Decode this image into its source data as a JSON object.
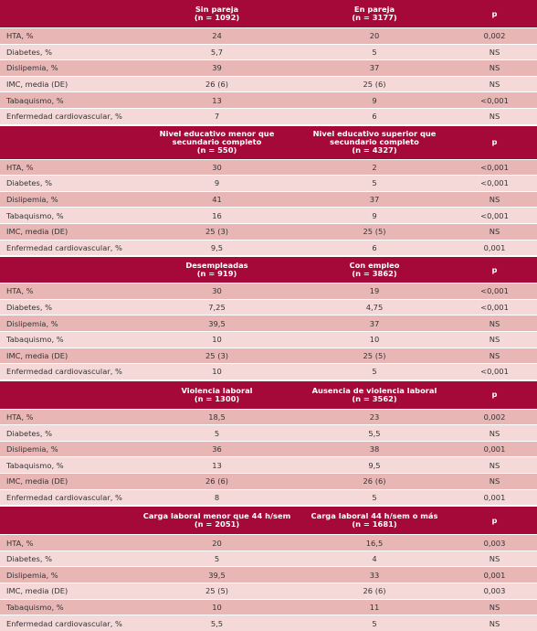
{
  "sections": [
    {
      "headers": [
        [
          "Sin pareja",
          "(n = 1092)"
        ],
        [
          "En pareja",
          "(n = 3177)"
        ],
        [
          "p"
        ]
      ],
      "rows": [
        [
          "HTA, %",
          "24",
          "20",
          "0,002"
        ],
        [
          "Diabetes, %",
          "5,7",
          "5",
          "NS"
        ],
        [
          "Dislipemia, %",
          "39",
          "37",
          "NS"
        ],
        [
          "IMC, media (DE)",
          "26 (6)",
          "25 (6)",
          "NS"
        ],
        [
          "Tabaquismo, %",
          "13",
          "9",
          "<0,001"
        ],
        [
          "Enfermedad cardiovascular, %",
          "7",
          "6",
          "NS"
        ]
      ]
    },
    {
      "headers": [
        [
          "Nivel educativo menor que",
          "secundario completo",
          "(n = 550)"
        ],
        [
          "Nivel educativo superior que",
          "secundario completo",
          "(n = 4327)"
        ],
        [
          "p"
        ]
      ],
      "rows": [
        [
          "HTA, %",
          "30",
          "2",
          "<0,001"
        ],
        [
          "Diabetes, %",
          "9",
          "5",
          "<0,001"
        ],
        [
          "Dislipemia, %",
          "41",
          "37",
          "NS"
        ],
        [
          "Tabaquismo, %",
          "16",
          "9",
          "<0,001"
        ],
        [
          "IMC, media (DE)",
          "25 (3)",
          "25 (5)",
          "NS"
        ],
        [
          "Enfermedad cardiovascular, %",
          "9,5",
          "6",
          "0,001"
        ]
      ]
    },
    {
      "headers": [
        [
          "Desempleadas",
          "(n = 919)"
        ],
        [
          "Con empleo",
          "(n = 3862)"
        ],
        [
          "p"
        ]
      ],
      "rows": [
        [
          "HTA, %",
          "30",
          "19",
          "<0,001"
        ],
        [
          "Diabetes, %",
          "7,25",
          "4,75",
          "<0,001"
        ],
        [
          "Dislipemia, %",
          "39,5",
          "37",
          "NS"
        ],
        [
          "Tabaquismo, %",
          "10",
          "10",
          "NS"
        ],
        [
          "IMC, media (DE)",
          "25 (3)",
          "25 (5)",
          "NS"
        ],
        [
          "Enfermedad cardiovascular, %",
          "10",
          "5",
          "<0,001"
        ]
      ]
    },
    {
      "headers": [
        [
          "Violencia laboral",
          "(n = 1300)"
        ],
        [
          "Ausencia de violencia laboral",
          "(n = 3562)"
        ],
        [
          "p"
        ]
      ],
      "rows": [
        [
          "HTA, %",
          "18,5",
          "23",
          "0,002"
        ],
        [
          "Diabetes, %",
          "5",
          "5,5",
          "NS"
        ],
        [
          "Dislipemia, %",
          "36",
          "38",
          "0,001"
        ],
        [
          "Tabaquismo, %",
          "13",
          "9,5",
          "NS"
        ],
        [
          "IMC, media (DE)",
          "26 (6)",
          "26 (6)",
          "NS"
        ],
        [
          "Enfermedad cardiovascular, %",
          "8",
          "5",
          "0,001"
        ]
      ]
    },
    {
      "headers": [
        [
          "Carga laboral menor que 44 h/sem",
          "(n = 2051)"
        ],
        [
          "Carga laboral 44 h/sem o más",
          "(n = 1681)"
        ],
        [
          "p"
        ]
      ],
      "rows": [
        [
          "HTA, %",
          "20",
          "16,5",
          "0,003"
        ],
        [
          "Diabetes, %",
          "5",
          "4",
          "NS"
        ],
        [
          "Dislipemia, %",
          "39,5",
          "33",
          "0,001"
        ],
        [
          "IMC, media (DE)",
          "25 (5)",
          "26 (6)",
          "0,003"
        ],
        [
          "Tabaquismo, %",
          "10",
          "11",
          "NS"
        ],
        [
          "Enfermedad cardiovascular, %",
          "5,5",
          "5",
          "NS"
        ]
      ]
    }
  ]
}
